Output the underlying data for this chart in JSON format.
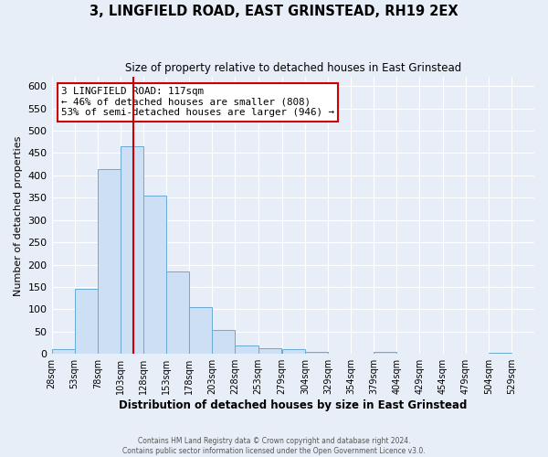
{
  "title": "3, LINGFIELD ROAD, EAST GRINSTEAD, RH19 2EX",
  "subtitle": "Size of property relative to detached houses in East Grinstead",
  "xlabel": "Distribution of detached houses by size in East Grinstead",
  "ylabel": "Number of detached properties",
  "bin_edges": [
    28,
    53,
    78,
    103,
    128,
    153,
    178,
    203,
    228,
    253,
    279,
    304,
    329,
    354,
    379,
    404,
    429,
    454,
    479,
    504,
    529,
    554
  ],
  "bin_heights": [
    10,
    145,
    415,
    465,
    355,
    185,
    104,
    53,
    18,
    13,
    10,
    5,
    0,
    0,
    5,
    0,
    0,
    0,
    0,
    3,
    0
  ],
  "bar_facecolor": "#ccdff5",
  "bar_edgecolor": "#6aaad4",
  "vline_x": 117,
  "vline_color": "#cc0000",
  "ylim": [
    0,
    620
  ],
  "yticks": [
    0,
    50,
    100,
    150,
    200,
    250,
    300,
    350,
    400,
    450,
    500,
    550,
    600
  ],
  "annotation_text": "3 LINGFIELD ROAD: 117sqm\n← 46% of detached houses are smaller (808)\n53% of semi-detached houses are larger (946) →",
  "annotation_box_color": "#ffffff",
  "annotation_border_color": "#cc0000",
  "footer_line1": "Contains HM Land Registry data © Crown copyright and database right 2024.",
  "footer_line2": "Contains public sector information licensed under the Open Government Licence v3.0.",
  "tick_labels": [
    "28sqm",
    "53sqm",
    "78sqm",
    "103sqm",
    "128sqm",
    "153sqm",
    "178sqm",
    "203sqm",
    "228sqm",
    "253sqm",
    "279sqm",
    "304sqm",
    "329sqm",
    "354sqm",
    "379sqm",
    "404sqm",
    "429sqm",
    "454sqm",
    "479sqm",
    "504sqm",
    "529sqm"
  ],
  "background_color": "#e8eef7",
  "grid_color": "#ffffff"
}
